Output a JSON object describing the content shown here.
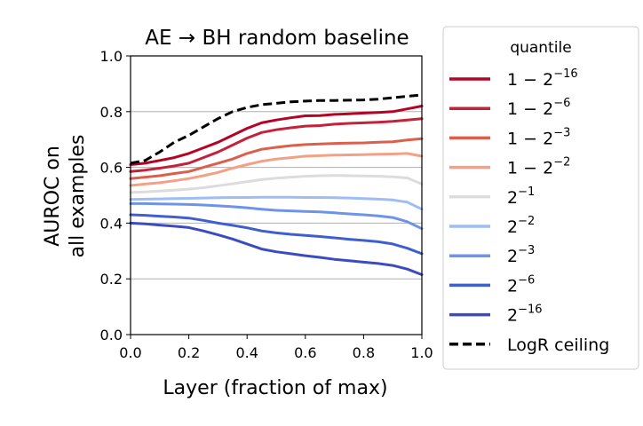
{
  "chart_data": {
    "type": "line",
    "title": "AE → BH random baseline",
    "xlabel": "Layer (fraction of max)",
    "ylabel": [
      "AUROC on",
      "all examples"
    ],
    "xlim": [
      0.0,
      1.0
    ],
    "ylim": [
      0.0,
      1.0
    ],
    "xticks": [
      "0.0",
      "0.2",
      "0.4",
      "0.6",
      "0.8",
      "1.0"
    ],
    "yticks": [
      "0.0",
      "0.2",
      "0.4",
      "0.6",
      "0.8",
      "1.0"
    ],
    "grid": "horizontal",
    "legend": {
      "title": "quantile",
      "placement": "right outside"
    },
    "x": [
      0.0,
      0.05,
      0.1,
      0.15,
      0.2,
      0.25,
      0.3,
      0.35,
      0.4,
      0.45,
      0.5,
      0.55,
      0.6,
      0.65,
      0.7,
      0.75,
      0.8,
      0.85,
      0.9,
      0.95,
      1.0
    ],
    "series": [
      {
        "base": "1 − 2",
        "exp": "−16",
        "color": "#b40426",
        "dashed": false,
        "values": [
          0.61,
          0.615,
          0.625,
          0.635,
          0.65,
          0.67,
          0.69,
          0.715,
          0.74,
          0.76,
          0.77,
          0.778,
          0.785,
          0.786,
          0.79,
          0.792,
          0.795,
          0.797,
          0.8,
          0.81,
          0.82
        ]
      },
      {
        "base": "1 − 2",
        "exp": "−6",
        "color": "#c4213a",
        "dashed": false,
        "values": [
          0.585,
          0.59,
          0.597,
          0.605,
          0.615,
          0.635,
          0.655,
          0.68,
          0.705,
          0.725,
          0.735,
          0.742,
          0.748,
          0.75,
          0.755,
          0.758,
          0.76,
          0.762,
          0.765,
          0.77,
          0.775
        ]
      },
      {
        "base": "1 − 2",
        "exp": "−3",
        "color": "#dc5f4b",
        "dashed": false,
        "values": [
          0.56,
          0.565,
          0.57,
          0.578,
          0.585,
          0.6,
          0.615,
          0.63,
          0.65,
          0.665,
          0.672,
          0.678,
          0.682,
          0.684,
          0.686,
          0.687,
          0.688,
          0.69,
          0.692,
          0.698,
          0.703
        ]
      },
      {
        "base": "1 − 2",
        "exp": "−2",
        "color": "#f2a186",
        "dashed": false,
        "values": [
          0.535,
          0.54,
          0.545,
          0.552,
          0.56,
          0.57,
          0.582,
          0.597,
          0.61,
          0.622,
          0.63,
          0.635,
          0.64,
          0.642,
          0.644,
          0.645,
          0.646,
          0.647,
          0.648,
          0.65,
          0.64
        ]
      },
      {
        "base": "2",
        "exp": "−1",
        "color": "#dcdcdc",
        "dashed": false,
        "values": [
          0.51,
          0.512,
          0.515,
          0.518,
          0.522,
          0.527,
          0.534,
          0.541,
          0.549,
          0.556,
          0.561,
          0.565,
          0.568,
          0.57,
          0.571,
          0.57,
          0.569,
          0.568,
          0.566,
          0.562,
          0.54
        ]
      },
      {
        "base": "2",
        "exp": "−2",
        "color": "#9ebcf5",
        "dashed": false,
        "values": [
          0.485,
          0.486,
          0.487,
          0.488,
          0.489,
          0.49,
          0.491,
          0.492,
          0.492,
          0.493,
          0.493,
          0.493,
          0.492,
          0.492,
          0.491,
          0.49,
          0.488,
          0.486,
          0.483,
          0.475,
          0.45
        ]
      },
      {
        "base": "2",
        "exp": "−3",
        "color": "#6f93e8",
        "dashed": false,
        "values": [
          0.47,
          0.47,
          0.469,
          0.468,
          0.467,
          0.465,
          0.462,
          0.459,
          0.455,
          0.45,
          0.446,
          0.444,
          0.442,
          0.44,
          0.437,
          0.433,
          0.43,
          0.426,
          0.42,
          0.405,
          0.38
        ]
      },
      {
        "base": "2",
        "exp": "−6",
        "color": "#3f5fcf",
        "dashed": false,
        "values": [
          0.43,
          0.428,
          0.425,
          0.422,
          0.418,
          0.41,
          0.4,
          0.392,
          0.383,
          0.372,
          0.365,
          0.36,
          0.356,
          0.352,
          0.347,
          0.342,
          0.338,
          0.333,
          0.325,
          0.31,
          0.29
        ]
      },
      {
        "base": "2",
        "exp": "−16",
        "color": "#3b4cc0",
        "dashed": false,
        "values": [
          0.4,
          0.397,
          0.393,
          0.389,
          0.384,
          0.372,
          0.358,
          0.343,
          0.325,
          0.307,
          0.297,
          0.29,
          0.283,
          0.277,
          0.27,
          0.265,
          0.26,
          0.255,
          0.248,
          0.235,
          0.215
        ]
      },
      {
        "base": "LogR ceiling",
        "exp": "",
        "color": "#000000",
        "dashed": true,
        "values": [
          0.615,
          0.625,
          0.655,
          0.69,
          0.715,
          0.745,
          0.775,
          0.8,
          0.815,
          0.825,
          0.83,
          0.835,
          0.838,
          0.84,
          0.84,
          0.841,
          0.842,
          0.845,
          0.85,
          0.855,
          0.86
        ]
      }
    ]
  }
}
